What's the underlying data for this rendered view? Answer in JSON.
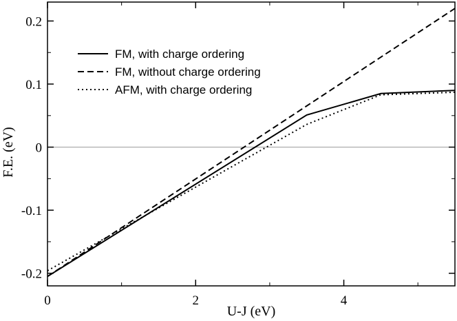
{
  "chart_data": {
    "type": "line",
    "title": "",
    "xlabel": "U-J (eV)",
    "ylabel": "F.E. (eV)",
    "xlim": [
      0,
      5.5
    ],
    "ylim": [
      -0.22,
      0.23
    ],
    "xticks": [
      0,
      2,
      4
    ],
    "xtick_labels": [
      "0",
      "2",
      "4"
    ],
    "yticks": [
      -0.2,
      -0.1,
      0,
      0.1,
      0.2
    ],
    "ytick_labels": [
      "-0.2",
      "-0.1",
      "0",
      "0.1",
      "0.2"
    ],
    "zero_line": true,
    "grid": false,
    "legend_position": "upper-left",
    "series": [
      {
        "name": "FM, with charge ordering",
        "style": "solid",
        "color": "#000000",
        "x": [
          0,
          3.5,
          4.5,
          5.5
        ],
        "y": [
          -0.205,
          0.051,
          0.085,
          0.09
        ]
      },
      {
        "name": "FM, without charge ordering",
        "style": "dashed",
        "color": "#000000",
        "x": [
          0,
          5.5
        ],
        "y": [
          -0.205,
          0.22
        ]
      },
      {
        "name": "AFM, with charge ordering",
        "style": "dotted",
        "color": "#000000",
        "x": [
          0,
          3.5,
          4.5,
          5.5
        ],
        "y": [
          -0.196,
          0.036,
          0.083,
          0.087
        ]
      }
    ]
  }
}
